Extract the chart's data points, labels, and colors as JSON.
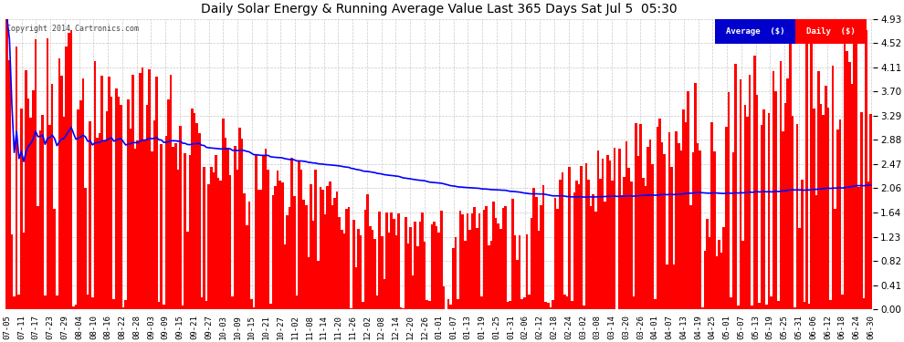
{
  "title": "Daily Solar Energy & Running Average Value Last 365 Days Sat Jul 5  05:30",
  "copyright": "Copyright 2014 Cartronics.com",
  "yticks": [
    0.0,
    0.41,
    0.82,
    1.23,
    1.64,
    2.06,
    2.47,
    2.88,
    3.29,
    3.7,
    4.11,
    4.52,
    4.93
  ],
  "ymax": 4.93,
  "ymin": 0.0,
  "bar_color": "#ff0000",
  "avg_line_color": "#0000ff",
  "bg_color": "#ffffff",
  "grid_color": "#bbbbbb",
  "title_color": "#000000",
  "legend_avg_bg": "#0000cc",
  "legend_daily_bg": "#ff0000",
  "legend_text_color": "#ffffff",
  "xtick_labels": [
    "07-05",
    "07-11",
    "07-17",
    "07-23",
    "07-29",
    "08-04",
    "08-10",
    "08-16",
    "08-22",
    "08-28",
    "09-03",
    "09-09",
    "09-15",
    "09-21",
    "09-27",
    "10-03",
    "10-09",
    "10-15",
    "10-21",
    "10-27",
    "11-02",
    "11-08",
    "11-14",
    "11-20",
    "11-26",
    "12-02",
    "12-08",
    "12-14",
    "12-20",
    "12-26",
    "01-01",
    "01-07",
    "01-13",
    "01-19",
    "01-25",
    "01-31",
    "02-06",
    "02-12",
    "02-18",
    "02-24",
    "03-02",
    "03-08",
    "03-14",
    "03-20",
    "03-26",
    "04-01",
    "04-07",
    "04-13",
    "04-19",
    "04-25",
    "05-01",
    "05-07",
    "05-13",
    "05-19",
    "05-25",
    "05-31",
    "06-06",
    "06-12",
    "06-18",
    "06-24",
    "06-30"
  ],
  "n_bars": 365,
  "seed": 42
}
